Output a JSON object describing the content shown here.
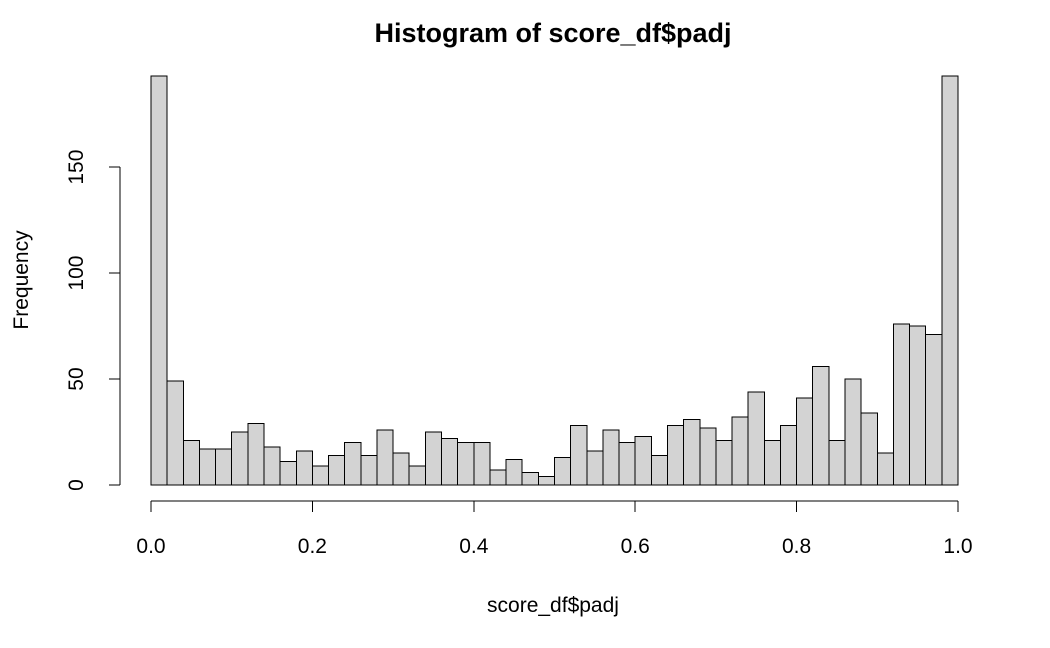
{
  "chart_data": {
    "type": "bar",
    "title": "Histogram of score_df$padj",
    "xlabel": "score_df$padj",
    "ylabel": "Frequency",
    "bin_width": 0.02,
    "bin_starts": [
      0.0,
      0.02,
      0.04,
      0.06,
      0.08,
      0.1,
      0.12,
      0.14,
      0.16,
      0.18,
      0.2,
      0.22,
      0.24,
      0.26,
      0.28,
      0.3,
      0.32,
      0.34,
      0.36,
      0.38,
      0.4,
      0.42,
      0.44,
      0.46,
      0.48,
      0.5,
      0.52,
      0.54,
      0.56,
      0.58,
      0.6,
      0.62,
      0.64,
      0.66,
      0.68,
      0.7,
      0.72,
      0.74,
      0.76,
      0.78,
      0.8,
      0.82,
      0.84,
      0.86,
      0.88,
      0.9,
      0.92,
      0.94,
      0.96,
      0.98
    ],
    "values": [
      193,
      49,
      21,
      17,
      17,
      25,
      29,
      18,
      11,
      16,
      9,
      14,
      20,
      14,
      26,
      15,
      9,
      25,
      22,
      20,
      20,
      7,
      12,
      6,
      4,
      13,
      28,
      16,
      26,
      20,
      23,
      14,
      28,
      31,
      27,
      21,
      32,
      44,
      21,
      28,
      41,
      56,
      21,
      50,
      34,
      15,
      76,
      75,
      71,
      193
    ],
    "xlim": [
      0,
      1
    ],
    "ylim": [
      0,
      193
    ],
    "xticks": [
      0.0,
      0.2,
      0.4,
      0.6,
      0.8,
      1.0
    ],
    "xtick_labels": [
      "0.0",
      "0.2",
      "0.4",
      "0.6",
      "0.8",
      "1.0"
    ],
    "yticks": [
      0,
      50,
      100,
      150
    ],
    "ytick_labels": [
      "0",
      "50",
      "100",
      "150"
    ],
    "grid": false,
    "bar_color": "#d3d3d3",
    "edge_color": "#000000"
  }
}
